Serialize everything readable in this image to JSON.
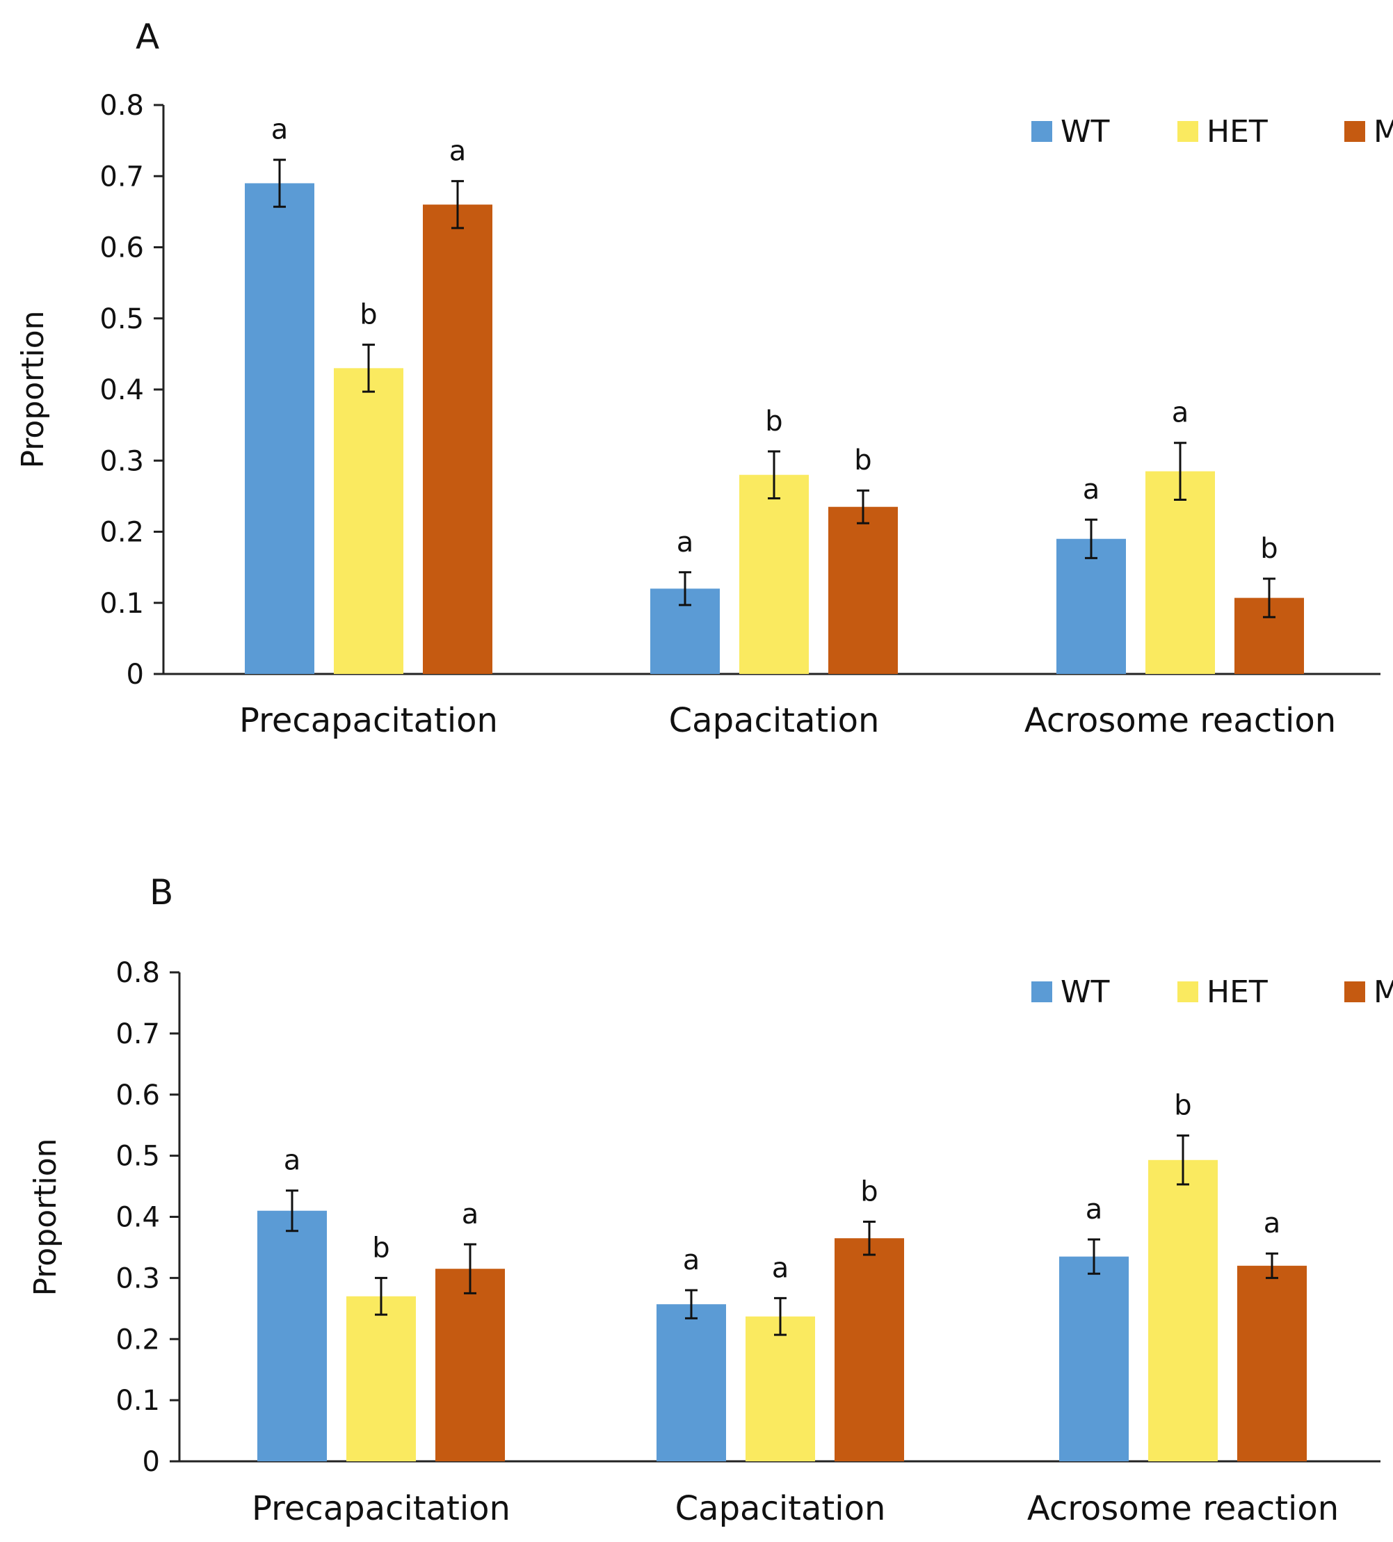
{
  "chart_data": [
    {
      "type": "bar",
      "panel_label": "A",
      "categories": [
        "Precapacitation",
        "Capacitation",
        "Acrosome reaction"
      ],
      "ylabel": "Proportion",
      "ylim": [
        0,
        0.8
      ],
      "yticks": [
        "0",
        "0.1",
        "0.2",
        "0.3",
        "0.4",
        "0.5",
        "0.6",
        "0.7",
        "0.8"
      ],
      "legend_position": "top-right",
      "series": [
        {
          "name": "WT",
          "color": "#5B9BD5",
          "values": [
            0.69,
            0.12,
            0.19
          ],
          "errors": [
            0.033,
            0.023,
            0.027
          ],
          "letters": [
            "a",
            "a",
            "a"
          ]
        },
        {
          "name": "HET",
          "color": "#FAEA60",
          "values": [
            0.43,
            0.28,
            0.285
          ],
          "errors": [
            0.033,
            0.033,
            0.04
          ],
          "letters": [
            "b",
            "b",
            "a"
          ]
        },
        {
          "name": "MUT",
          "color": "#C55A11",
          "values": [
            0.66,
            0.235,
            0.107
          ],
          "errors": [
            0.033,
            0.023,
            0.027
          ],
          "letters": [
            "a",
            "b",
            "b"
          ]
        }
      ]
    },
    {
      "type": "bar",
      "panel_label": "B",
      "categories": [
        "Precapacitation",
        "Capacitation",
        "Acrosome reaction"
      ],
      "ylabel": "Proportion",
      "ylim": [
        0,
        0.8
      ],
      "yticks": [
        "0",
        "0.1",
        "0.2",
        "0.3",
        "0.4",
        "0.5",
        "0.6",
        "0.7",
        "0.8"
      ],
      "legend_position": "top-right",
      "series": [
        {
          "name": "WT",
          "color": "#5B9BD5",
          "values": [
            0.41,
            0.257,
            0.335
          ],
          "errors": [
            0.033,
            0.023,
            0.028
          ],
          "letters": [
            "a",
            "a",
            "a"
          ]
        },
        {
          "name": "HET",
          "color": "#FAEA60",
          "values": [
            0.27,
            0.237,
            0.493
          ],
          "errors": [
            0.03,
            0.03,
            0.04
          ],
          "letters": [
            "b",
            "a",
            "b"
          ]
        },
        {
          "name": "MUT",
          "color": "#C55A11",
          "values": [
            0.315,
            0.365,
            0.32
          ],
          "errors": [
            0.04,
            0.027,
            0.02
          ],
          "letters": [
            "a",
            "b",
            "a"
          ]
        }
      ]
    }
  ]
}
